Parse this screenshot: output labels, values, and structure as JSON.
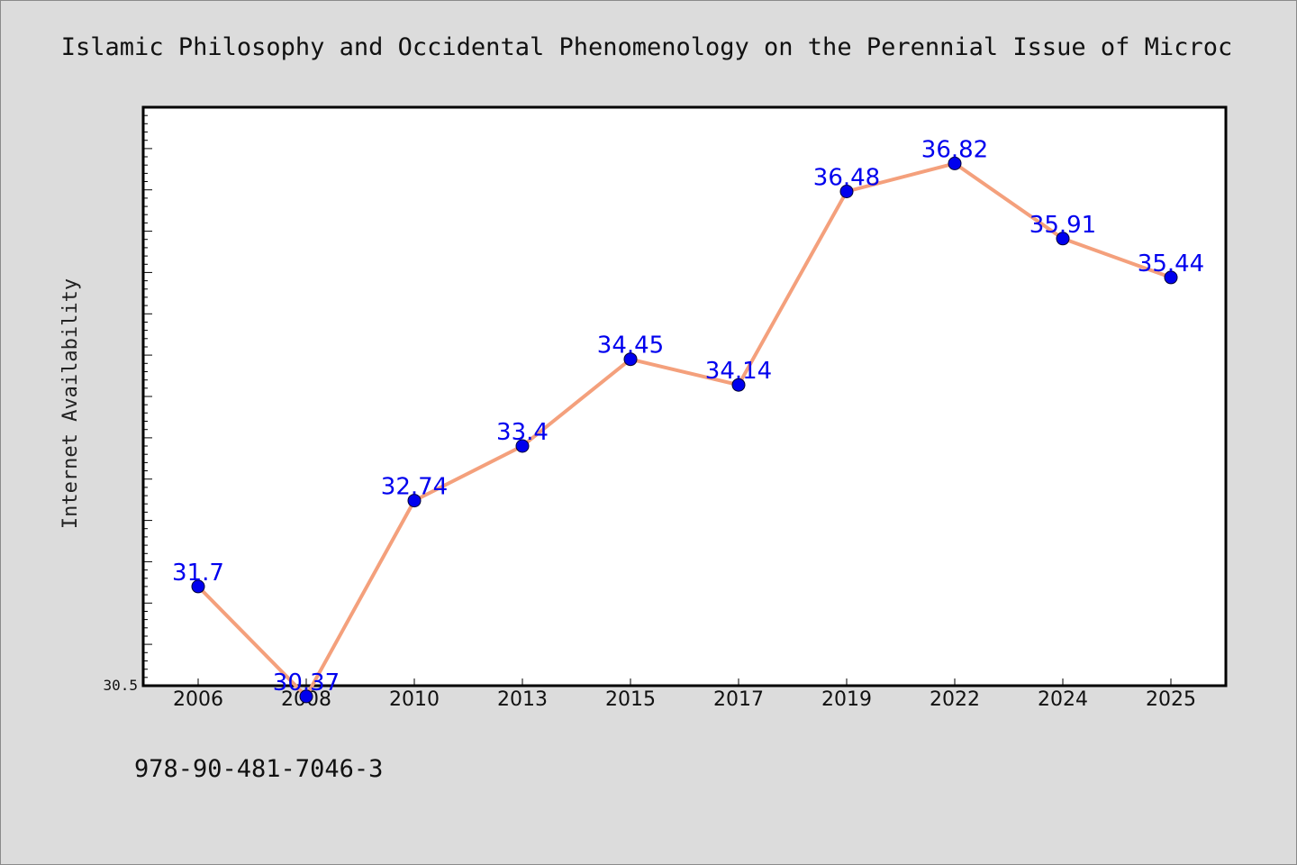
{
  "chart_data": {
    "type": "line",
    "title": "Islamic Philosophy and Occidental Phenomenology on the Perennial Issue of Microc",
    "xlabel": "",
    "ylabel": "Internet Availability",
    "categories": [
      "2006",
      "2008",
      "2010",
      "2013",
      "2015",
      "2017",
      "2019",
      "2022",
      "2024",
      "2025"
    ],
    "series": [
      {
        "values": [
          31.7,
          30.37,
          32.74,
          33.4,
          34.45,
          34.14,
          36.48,
          36.82,
          35.91,
          35.44
        ],
        "labels": [
          "31.7",
          "30.37",
          "32.74",
          "33.4",
          "34.45",
          "34.14",
          "36.48",
          "36.82",
          "35.91",
          "35.44"
        ],
        "line_color": "#f4a07c",
        "marker_color": "#0000ee",
        "label_color": "#0000ee"
      }
    ],
    "ylim": [
      30.5,
      37.5
    ],
    "yticks_labeled": [
      "30.5"
    ],
    "grid": false,
    "legend": "none"
  },
  "footer": {
    "isbn": "978-90-481-7046-3"
  }
}
